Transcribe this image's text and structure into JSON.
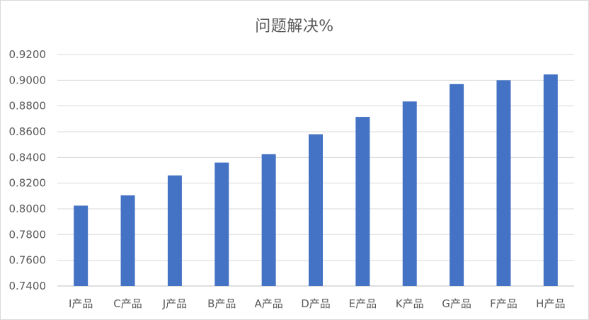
{
  "chart_data": {
    "type": "bar",
    "title": "问题解决%",
    "categories": [
      "I产品",
      "C产品",
      "J产品",
      "B产品",
      "A产品",
      "D产品",
      "E产品",
      "K产品",
      "G产品",
      "F产品",
      "H产品"
    ],
    "values": [
      0.8025,
      0.8105,
      0.826,
      0.836,
      0.8425,
      0.858,
      0.8715,
      0.8835,
      0.897,
      0.9,
      0.9045
    ],
    "ylim": [
      0.74,
      0.92
    ],
    "yticks": [
      "0.7400",
      "0.7600",
      "0.7800",
      "0.8000",
      "0.8200",
      "0.8400",
      "0.8600",
      "0.8800",
      "0.9000",
      "0.9200"
    ],
    "grid": true,
    "bar_color": "#4472C4",
    "grid_color": "#d9d9d9"
  }
}
